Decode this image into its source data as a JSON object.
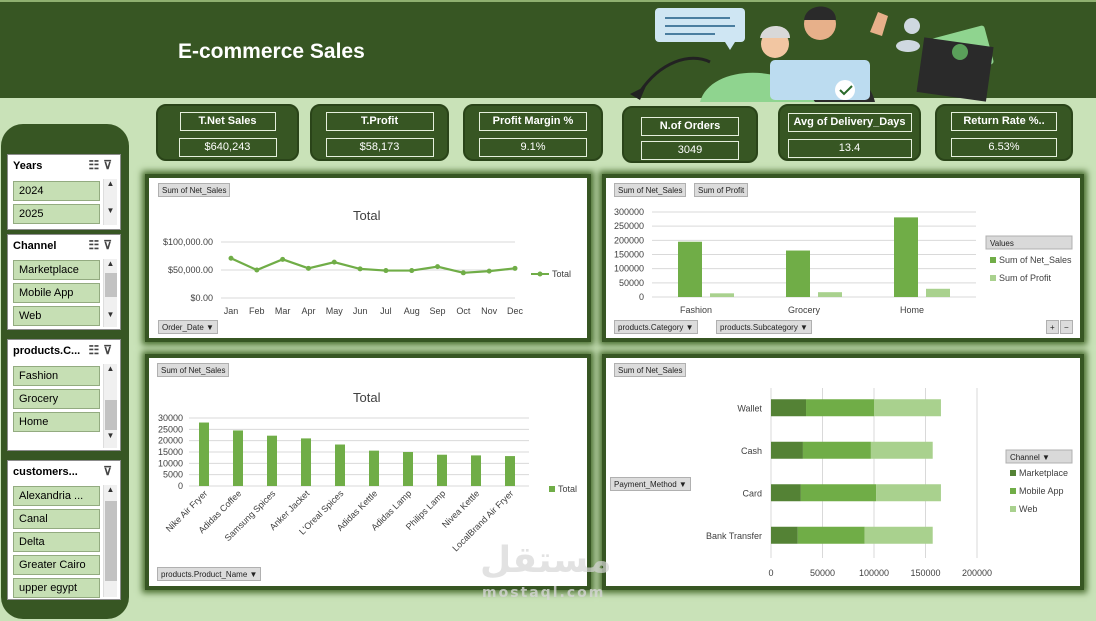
{
  "header": {
    "title": "E-commerce Sales"
  },
  "kpis": [
    {
      "label": "T.Net Sales",
      "value": "$640,243"
    },
    {
      "label": "T.Profit",
      "value": "$58,173"
    },
    {
      "label": "Profit Margin %",
      "value": "9.1%"
    },
    {
      "label": "N.of Orders",
      "value": "3049"
    },
    {
      "label": "Avg of Delivery_Days",
      "value": "13.4"
    },
    {
      "label": "Return Rate %..",
      "value": "6.53%"
    }
  ],
  "slicers": {
    "years": {
      "title": "Years",
      "items": [
        "2024",
        "2025"
      ]
    },
    "channel": {
      "title": "Channel",
      "items": [
        "Marketplace",
        "Mobile App",
        "Web"
      ]
    },
    "category": {
      "title": "products.C...",
      "items": [
        "Fashion",
        "Grocery",
        "Home"
      ]
    },
    "customers": {
      "title": "customers...",
      "items": [
        "Alexandria ...",
        "Canal",
        "Delta",
        "Greater Cairo",
        "upper egypt"
      ]
    }
  },
  "colors": {
    "dark_green": "#375623",
    "series_green": "#70ad47",
    "light_green": "#a9d18e",
    "mid_green": "#548235"
  },
  "charts": {
    "monthly": {
      "field_button": "Sum of Net_Sales",
      "axis_button": "Order_Date",
      "title": "Total",
      "legend": "Total"
    },
    "category": {
      "field_buttons": [
        "Sum of Net_Sales",
        "Sum of Profit"
      ],
      "axis_buttons": [
        "products.Category",
        "products.Subcategory"
      ],
      "legend_title": "Values",
      "legend": [
        "Sum of Net_Sales",
        "Sum of Profit"
      ]
    },
    "products": {
      "field_button": "Sum of Net_Sales",
      "axis_button": "products.Product_Name",
      "title": "Total",
      "legend": "Total"
    },
    "payment": {
      "field_button": "Sum of Net_Sales",
      "axis_button": "Payment_Method",
      "legend_title": "Channel",
      "legend": [
        "Marketplace",
        "Mobile App",
        "Web"
      ]
    }
  },
  "chart_data": [
    {
      "type": "line",
      "title": "Total",
      "categories": [
        "Jan",
        "Feb",
        "Mar",
        "Apr",
        "May",
        "Jun",
        "Jul",
        "Aug",
        "Sep",
        "Oct",
        "Nov",
        "Dec"
      ],
      "series": [
        {
          "name": "Total",
          "values": [
            71000,
            50000,
            69000,
            53000,
            64000,
            52000,
            49000,
            49000,
            56000,
            45000,
            48000,
            53000
          ]
        }
      ],
      "ylim": [
        0,
        100000
      ],
      "yticks": [
        "$0.00",
        "$50,000.00",
        "$100,000.00"
      ],
      "legend_position": "right",
      "grid": true
    },
    {
      "type": "bar",
      "categories": [
        "Fashion",
        "Grocery",
        "Home"
      ],
      "series": [
        {
          "name": "Sum of Net_Sales",
          "values": [
            195000,
            164000,
            281000
          ]
        },
        {
          "name": "Sum of Profit",
          "values": [
            13000,
            17000,
            29000
          ]
        }
      ],
      "ylim": [
        0,
        300000
      ],
      "yticks": [
        "0",
        "50000",
        "100000",
        "150000",
        "200000",
        "250000",
        "300000"
      ],
      "legend_position": "right",
      "grid": true
    },
    {
      "type": "bar",
      "title": "Total",
      "categories": [
        "Nike Air Fryer",
        "Adidas Coffee",
        "Samsung Spices",
        "Anker Jacket",
        "L'Oreal Spices",
        "Adidas Kettle",
        "Adidas Lamp",
        "Philips Lamp",
        "Nivea Kettle",
        "LocalBrand Air Fryer"
      ],
      "series": [
        {
          "name": "Total",
          "values": [
            28000,
            24500,
            22200,
            21000,
            18300,
            15600,
            15000,
            13800,
            13500,
            13200
          ]
        }
      ],
      "ylim": [
        0,
        30000
      ],
      "yticks": [
        "0",
        "5000",
        "10000",
        "15000",
        "20000",
        "25000",
        "30000"
      ],
      "legend_position": "right",
      "grid": true
    },
    {
      "type": "bar",
      "orientation": "horizontal",
      "stacked": true,
      "categories": [
        "Wallet",
        "Cash",
        "Card",
        "Bank Transfer"
      ],
      "series": [
        {
          "name": "Marketplace",
          "values": [
            34000,
            31000,
            29000,
            26000
          ]
        },
        {
          "name": "Mobile App",
          "values": [
            66000,
            66000,
            73000,
            65000
          ]
        },
        {
          "name": "Web",
          "values": [
            65000,
            60000,
            63000,
            66000
          ]
        }
      ],
      "xlim": [
        0,
        200000
      ],
      "xticks": [
        "0",
        "50000",
        "100000",
        "150000",
        "200000"
      ],
      "legend_position": "right",
      "grid": true
    }
  ]
}
